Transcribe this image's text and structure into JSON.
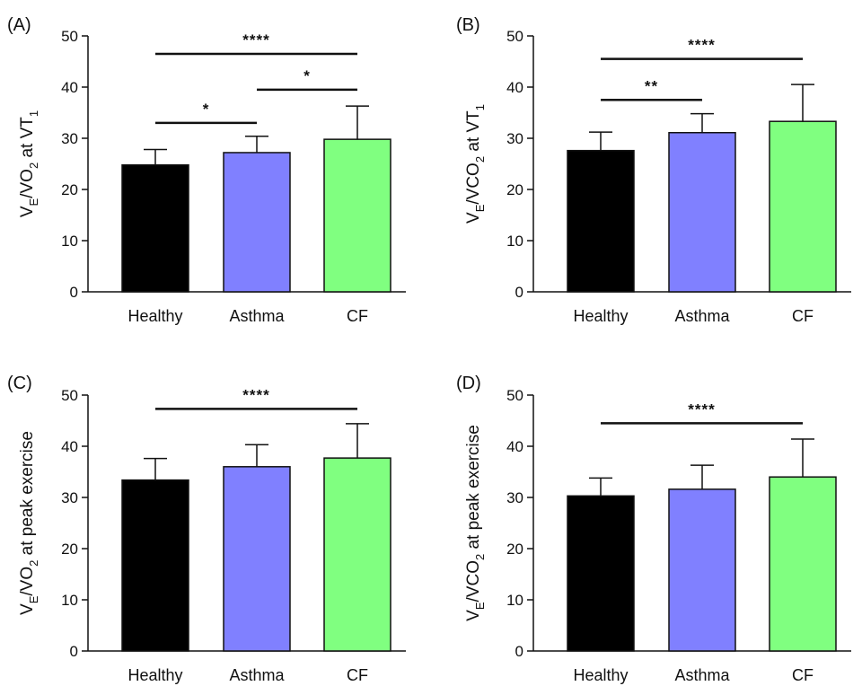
{
  "chart_data": [
    {
      "panel_label": "(A)",
      "type": "bar",
      "ylabel": {
        "parts": [
          {
            "t": "V"
          },
          {
            "t": "E",
            "sub": true
          },
          {
            "t": "/VO"
          },
          {
            "t": "2",
            "sub": true
          },
          {
            "t": " at VT"
          },
          {
            "t": "1",
            "sub": true
          }
        ]
      },
      "categories": [
        "Healthy",
        "Asthma",
        "CF"
      ],
      "values": [
        24.8,
        27.2,
        29.8
      ],
      "errors": [
        3.0,
        3.2,
        6.5
      ],
      "colors": [
        "#000000",
        "#8080ff",
        "#80ff80"
      ],
      "ylim": [
        0,
        50
      ],
      "yticks": [
        0,
        10,
        20,
        30,
        40,
        50
      ],
      "significance": [
        {
          "from": 0,
          "to": 2,
          "label": "****",
          "y": 46.5
        },
        {
          "from": 1,
          "to": 2,
          "label": "*",
          "y": 39.5
        },
        {
          "from": 0,
          "to": 1,
          "label": "*",
          "y": 33.0
        }
      ]
    },
    {
      "panel_label": "(B)",
      "type": "bar",
      "ylabel": {
        "parts": [
          {
            "t": "V"
          },
          {
            "t": "E",
            "sub": true
          },
          {
            "t": "/VCO"
          },
          {
            "t": "2",
            "sub": true
          },
          {
            "t": " at VT"
          },
          {
            "t": "1",
            "sub": true
          }
        ]
      },
      "categories": [
        "Healthy",
        "Asthma",
        "CF"
      ],
      "values": [
        27.6,
        31.1,
        33.3
      ],
      "errors": [
        3.6,
        3.7,
        7.2
      ],
      "colors": [
        "#000000",
        "#8080ff",
        "#80ff80"
      ],
      "ylim": [
        0,
        50
      ],
      "yticks": [
        0,
        10,
        20,
        30,
        40,
        50
      ],
      "significance": [
        {
          "from": 0,
          "to": 2,
          "label": "****",
          "y": 45.5
        },
        {
          "from": 0,
          "to": 1,
          "label": "**",
          "y": 37.5
        }
      ]
    },
    {
      "panel_label": "(C)",
      "type": "bar",
      "ylabel": {
        "parts": [
          {
            "t": "V"
          },
          {
            "t": "E",
            "sub": true
          },
          {
            "t": "/VO"
          },
          {
            "t": "2",
            "sub": true
          },
          {
            "t": " at peak exercise"
          }
        ]
      },
      "categories": [
        "Healthy",
        "Asthma",
        "CF"
      ],
      "values": [
        33.4,
        36.0,
        37.7
      ],
      "errors": [
        4.2,
        4.3,
        6.7
      ],
      "colors": [
        "#000000",
        "#8080ff",
        "#80ff80"
      ],
      "ylim": [
        0,
        50
      ],
      "yticks": [
        0,
        10,
        20,
        30,
        40,
        50
      ],
      "significance": [
        {
          "from": 0,
          "to": 2,
          "label": "****",
          "y": 47.3
        }
      ]
    },
    {
      "panel_label": "(D)",
      "type": "bar",
      "ylabel": {
        "parts": [
          {
            "t": "V"
          },
          {
            "t": "E",
            "sub": true
          },
          {
            "t": "/VCO"
          },
          {
            "t": "2",
            "sub": true
          },
          {
            "t": " at peak exercise"
          }
        ]
      },
      "categories": [
        "Healthy",
        "Asthma",
        "CF"
      ],
      "values": [
        30.3,
        31.6,
        34.0
      ],
      "errors": [
        3.5,
        4.7,
        7.4
      ],
      "colors": [
        "#000000",
        "#8080ff",
        "#80ff80"
      ],
      "ylim": [
        0,
        50
      ],
      "yticks": [
        0,
        10,
        20,
        30,
        40,
        50
      ],
      "significance": [
        {
          "from": 0,
          "to": 2,
          "label": "****",
          "y": 44.5
        }
      ]
    }
  ]
}
